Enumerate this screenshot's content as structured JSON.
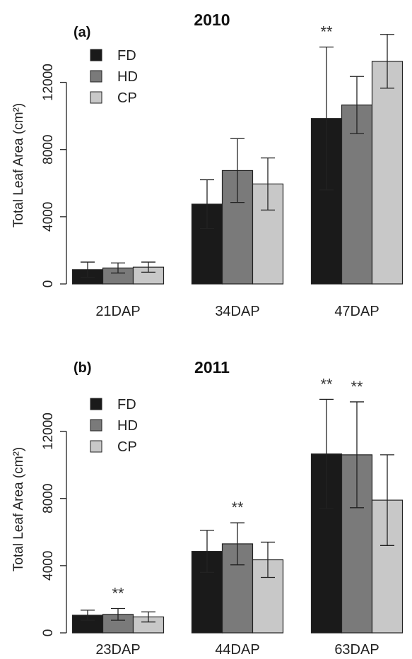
{
  "colors": {
    "FD": "#1a1a1a",
    "HD": "#7a7a7a",
    "CP": "#c8c8c8",
    "axis": "#222222",
    "stroke": "#222222"
  },
  "chart_data": [
    {
      "type": "bar",
      "panel": "(a)",
      "title": "2010",
      "ylabel": "Total Leaf Area (cm²)",
      "xlabel": "",
      "ylim": [
        0,
        14000
      ],
      "yticks": [
        0,
        4000,
        8000,
        12000
      ],
      "categories": [
        "21DAP",
        "34DAP",
        "47DAP"
      ],
      "legend": {
        "position": "top-left",
        "entries": [
          "FD",
          "HD",
          "CP"
        ]
      },
      "series": [
        {
          "name": "FD",
          "values": [
            850,
            4750,
            9850
          ],
          "errors": [
            450,
            1450,
            4250
          ]
        },
        {
          "name": "HD",
          "values": [
            950,
            6750,
            10650
          ],
          "errors": [
            300,
            1900,
            1700
          ]
        },
        {
          "name": "CP",
          "values": [
            1000,
            5950,
            13250
          ],
          "errors": [
            300,
            1550,
            1600
          ]
        }
      ],
      "annotations": [
        {
          "category": "47DAP",
          "series": "FD",
          "text": "**"
        }
      ]
    },
    {
      "type": "bar",
      "panel": "(b)",
      "title": "2011",
      "ylabel": "Total Leaf Area (cm²)",
      "xlabel": "",
      "ylim": [
        0,
        14000
      ],
      "yticks": [
        0,
        4000,
        8000,
        12000
      ],
      "categories": [
        "23DAP",
        "44DAP",
        "63DAP"
      ],
      "legend": {
        "position": "top-left",
        "entries": [
          "FD",
          "HD",
          "CP"
        ]
      },
      "series": [
        {
          "name": "FD",
          "values": [
            1050,
            4850,
            10650
          ],
          "errors": [
            300,
            1250,
            3250
          ]
        },
        {
          "name": "HD",
          "values": [
            1100,
            5300,
            10600
          ],
          "errors": [
            350,
            1250,
            3150
          ]
        },
        {
          "name": "CP",
          "values": [
            950,
            4350,
            7900
          ],
          "errors": [
            300,
            1050,
            2700
          ]
        }
      ],
      "annotations": [
        {
          "category": "23DAP",
          "series": "HD",
          "text": "**"
        },
        {
          "category": "44DAP",
          "series": "HD",
          "text": "**"
        },
        {
          "category": "63DAP",
          "series": "FD",
          "text": "**"
        },
        {
          "category": "63DAP",
          "series": "HD",
          "text": "**"
        }
      ]
    }
  ]
}
